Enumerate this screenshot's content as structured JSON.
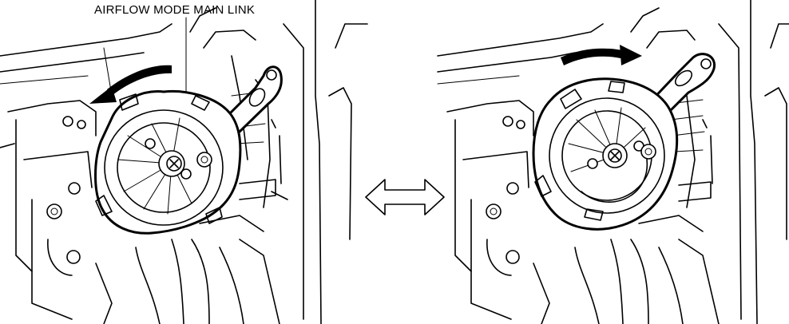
{
  "diagram": {
    "callout_label": "AIRFLOW MODE MAIN LINK",
    "icons": [
      "counterclockwise-rotation-arrow",
      "clockwise-rotation-arrow",
      "double-headed-arrow"
    ]
  }
}
